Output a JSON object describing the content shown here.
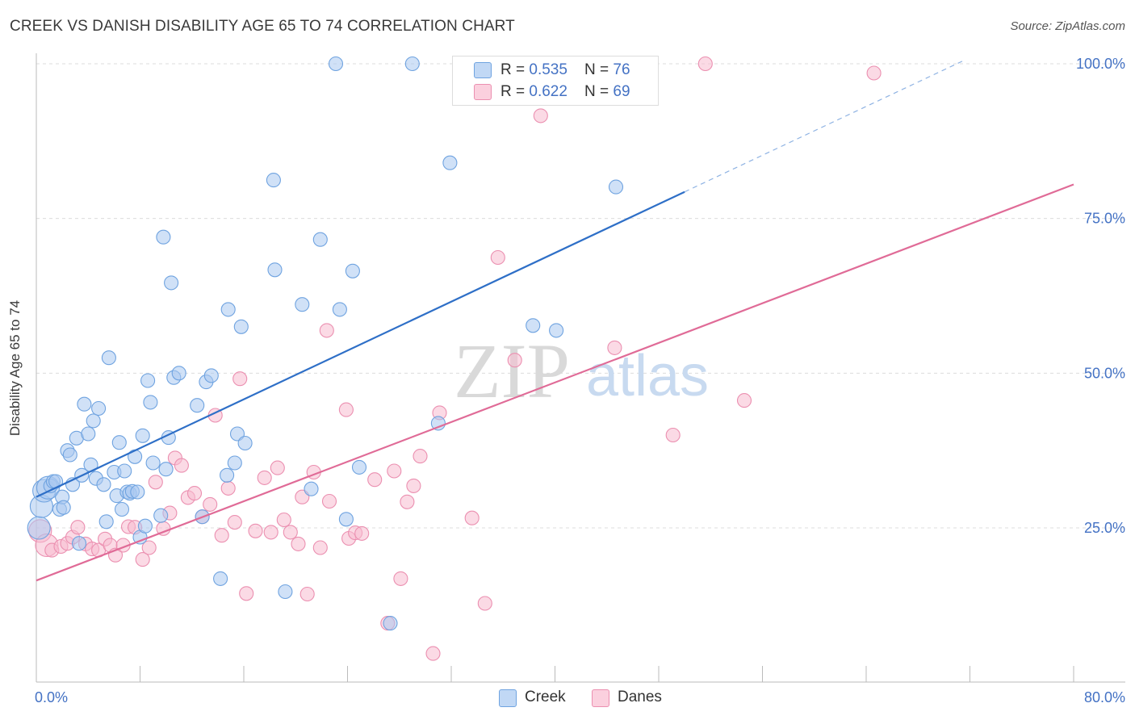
{
  "title": "CREEK VS DANISH DISABILITY AGE 65 TO 74 CORRELATION CHART",
  "source": "Source: ZipAtlas.com",
  "watermark": {
    "zip": "ZIP",
    "atlas": "atlas"
  },
  "legend_stats": [
    {
      "r_label": "R = ",
      "r_value": "0.535",
      "n_label": "N = ",
      "n_value": "76"
    },
    {
      "r_label": "R = ",
      "r_value": "0.622",
      "n_label": "N = ",
      "n_value": "69"
    }
  ],
  "chart_data": {
    "type": "scatter",
    "title": "CREEK VS DANISH DISABILITY AGE 65 TO 74 CORRELATION CHART",
    "xlabel": "",
    "ylabel": "Disability Age 65 to 74",
    "xlim": [
      0,
      80
    ],
    "ylim": [
      0,
      102
    ],
    "x_tick_labels": [
      "0.0%",
      "80.0%"
    ],
    "y_ticks": [
      25,
      50,
      75,
      100
    ],
    "y_tick_labels": [
      "25.0%",
      "50.0%",
      "75.0%",
      "100.0%"
    ],
    "grid": true,
    "legend_position": "top-center",
    "series": [
      {
        "name": "Creek",
        "color": "#6fa3e0",
        "fill": "#a9c8f0",
        "r": 0.535,
        "n": 76,
        "trend": {
          "x": [
            0,
            50,
            71.5
          ],
          "y": [
            30,
            79.5,
            100.5
          ],
          "solid_until": 50
        },
        "points": [
          [
            0.2,
            25
          ],
          [
            0.4,
            28.5
          ],
          [
            0.6,
            31
          ],
          [
            0.9,
            31.5
          ],
          [
            1.1,
            31.8
          ],
          [
            1.3,
            32.5
          ],
          [
            1.5,
            32.5
          ],
          [
            1.8,
            28
          ],
          [
            2.0,
            30
          ],
          [
            2.1,
            28.3
          ],
          [
            2.4,
            37.5
          ],
          [
            2.6,
            36.8
          ],
          [
            2.8,
            32
          ],
          [
            3.1,
            39.5
          ],
          [
            3.3,
            22.5
          ],
          [
            3.5,
            33.5
          ],
          [
            3.7,
            45
          ],
          [
            4.0,
            40.2
          ],
          [
            4.2,
            35.2
          ],
          [
            4.4,
            42.3
          ],
          [
            4.6,
            33
          ],
          [
            4.8,
            44.3
          ],
          [
            5.2,
            32
          ],
          [
            5.4,
            26
          ],
          [
            5.6,
            52.5
          ],
          [
            6.0,
            34
          ],
          [
            6.2,
            30.2
          ],
          [
            6.4,
            38.8
          ],
          [
            6.6,
            28
          ],
          [
            6.8,
            34.2
          ],
          [
            7.0,
            30.8
          ],
          [
            7.2,
            30.6
          ],
          [
            7.4,
            30.9
          ],
          [
            7.6,
            36.5
          ],
          [
            7.8,
            30.8
          ],
          [
            8.0,
            23.5
          ],
          [
            8.2,
            39.9
          ],
          [
            8.4,
            25.3
          ],
          [
            8.6,
            48.8
          ],
          [
            8.8,
            45.3
          ],
          [
            9.0,
            35.5
          ],
          [
            9.6,
            27
          ],
          [
            9.8,
            72
          ],
          [
            10.0,
            34.5
          ],
          [
            10.2,
            39.6
          ],
          [
            10.4,
            64.6
          ],
          [
            10.6,
            49.3
          ],
          [
            11.0,
            50
          ],
          [
            12.4,
            44.8
          ],
          [
            13.1,
            48.6
          ],
          [
            12.8,
            26.8
          ],
          [
            13.5,
            49.6
          ],
          [
            14.2,
            16.8
          ],
          [
            14.7,
            33.5
          ],
          [
            14.8,
            60.3
          ],
          [
            15.3,
            35.5
          ],
          [
            15.5,
            40.2
          ],
          [
            15.8,
            57.5
          ],
          [
            16.1,
            38.7
          ],
          [
            18.3,
            81.2
          ],
          [
            18.4,
            66.7
          ],
          [
            19.2,
            14.7
          ],
          [
            20.5,
            61.1
          ],
          [
            21.2,
            31.3
          ],
          [
            21.9,
            71.6
          ],
          [
            23.1,
            100
          ],
          [
            23.4,
            60.3
          ],
          [
            23.9,
            26.4
          ],
          [
            24.4,
            66.5
          ],
          [
            24.9,
            34.8
          ],
          [
            27.3,
            9.6
          ],
          [
            29.0,
            100
          ],
          [
            31.0,
            41.9
          ],
          [
            31.9,
            84
          ],
          [
            38.3,
            57.7
          ],
          [
            40.1,
            56.9
          ],
          [
            44.7,
            80.1
          ]
        ]
      },
      {
        "name": "Danes",
        "color": "#eb8fb0",
        "fill": "#f7bcd0",
        "r": 0.622,
        "n": 69,
        "trend": {
          "x": [
            0,
            80
          ],
          "y": [
            16.5,
            80.5
          ]
        },
        "points": [
          [
            0.3,
            24.5
          ],
          [
            0.8,
            22.2
          ],
          [
            1.2,
            21.4
          ],
          [
            1.9,
            22
          ],
          [
            2.4,
            22.5
          ],
          [
            2.8,
            23.5
          ],
          [
            3.2,
            25.1
          ],
          [
            3.8,
            22.4
          ],
          [
            4.3,
            21.6
          ],
          [
            4.8,
            21.4
          ],
          [
            5.3,
            23.2
          ],
          [
            5.7,
            22.2
          ],
          [
            6.1,
            20.6
          ],
          [
            6.7,
            22.2
          ],
          [
            7.1,
            25.2
          ],
          [
            7.6,
            25.1
          ],
          [
            8.2,
            19.9
          ],
          [
            8.7,
            21.8
          ],
          [
            9.2,
            32.4
          ],
          [
            9.8,
            24.9
          ],
          [
            10.3,
            27.4
          ],
          [
            10.7,
            36.3
          ],
          [
            11.2,
            35.1
          ],
          [
            11.7,
            29.9
          ],
          [
            12.2,
            30.6
          ],
          [
            12.8,
            26.8
          ],
          [
            13.4,
            28.8
          ],
          [
            13.8,
            43.2
          ],
          [
            14.3,
            23.8
          ],
          [
            14.8,
            31.4
          ],
          [
            15.3,
            25.9
          ],
          [
            15.7,
            49.1
          ],
          [
            16.2,
            14.4
          ],
          [
            16.9,
            24.5
          ],
          [
            17.6,
            33.1
          ],
          [
            18.1,
            24.3
          ],
          [
            18.6,
            34.7
          ],
          [
            19.1,
            26.3
          ],
          [
            19.6,
            24.3
          ],
          [
            20.2,
            22.4
          ],
          [
            20.5,
            30
          ],
          [
            20.9,
            14.3
          ],
          [
            21.4,
            34
          ],
          [
            21.9,
            21.8
          ],
          [
            22.4,
            56.9
          ],
          [
            22.6,
            29.3
          ],
          [
            23.9,
            44.1
          ],
          [
            24.1,
            23.3
          ],
          [
            24.6,
            24.2
          ],
          [
            25.1,
            24.1
          ],
          [
            26.1,
            32.8
          ],
          [
            27.1,
            9.6
          ],
          [
            27.6,
            34.2
          ],
          [
            28.1,
            16.8
          ],
          [
            28.6,
            29.2
          ],
          [
            29.1,
            31.8
          ],
          [
            29.6,
            36.6
          ],
          [
            30.6,
            4.7
          ],
          [
            31.1,
            43.6
          ],
          [
            33.6,
            26.6
          ],
          [
            34.6,
            12.8
          ],
          [
            35.6,
            68.7
          ],
          [
            36.9,
            52.1
          ],
          [
            38.9,
            91.6
          ],
          [
            44.6,
            54.1
          ],
          [
            49.1,
            40
          ],
          [
            51.6,
            100
          ],
          [
            54.6,
            45.6
          ],
          [
            64.6,
            98.5
          ]
        ]
      }
    ]
  }
}
